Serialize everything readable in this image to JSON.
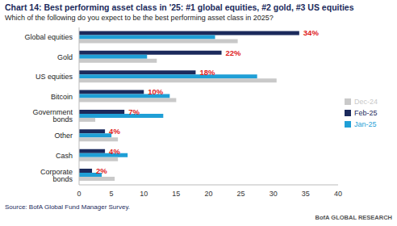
{
  "chart_data": {
    "type": "bar",
    "orientation": "horizontal",
    "title": "Chart 14: Best performing asset class in '25: #1 global equities, #2 gold, #3 US equities",
    "subtitle": "Which of the following do you expect to be the best performing asset class in 2025?",
    "source": "Source: BofA Global Fund Manager Survey.",
    "branding": "BofA GLOBAL RESEARCH",
    "categories": [
      "Global equities",
      "Gold",
      "US equities",
      "Bitcoin",
      "Government bonds",
      "Other",
      "Cash",
      "Corporate bonds"
    ],
    "series": [
      {
        "name": "Feb-25",
        "color": "#1b2a5c",
        "values": [
          34,
          22,
          18,
          10,
          7,
          4,
          4,
          2
        ],
        "data_labels": true,
        "value_labels": [
          "34%",
          "22%",
          "18%",
          "10%",
          "7%",
          "4%",
          "4%",
          "2%"
        ]
      },
      {
        "name": "Jan-25",
        "color": "#1f9fd6",
        "values": [
          21,
          10.5,
          27.5,
          14,
          13,
          5,
          7.5,
          3.5
        ]
      },
      {
        "name": "Dec-24",
        "color": "#c9c9c9",
        "values": [
          24.5,
          12,
          30.5,
          15,
          2.5,
          6,
          6,
          5.5
        ]
      }
    ],
    "xlim": [
      0,
      40
    ],
    "xticks": [
      0,
      5,
      10,
      15,
      20,
      25,
      30,
      35,
      40
    ],
    "grid": false,
    "legend": "right"
  }
}
